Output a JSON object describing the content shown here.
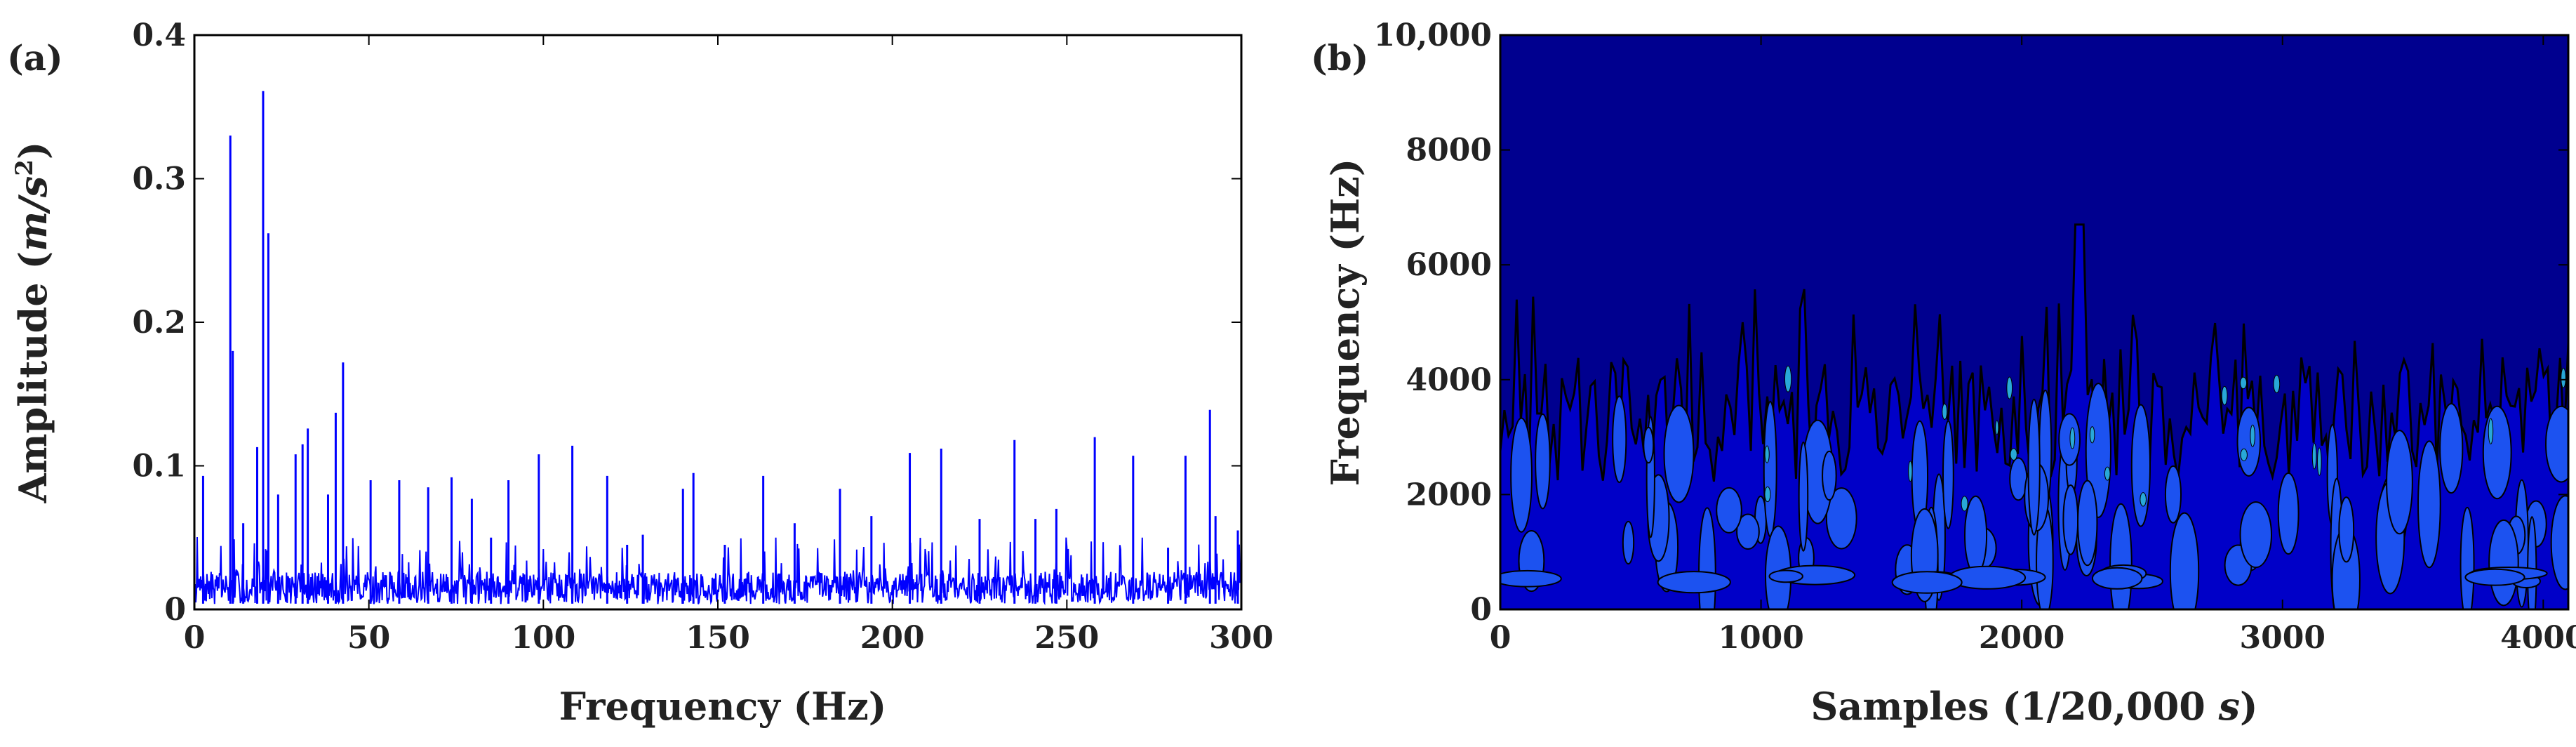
{
  "chart_data": [
    {
      "type": "line",
      "panel_label": "(a)",
      "xlabel": "Frequency (Hz)",
      "ylabel_parts": [
        "Amplitude (",
        "m/s",
        "2",
        ")"
      ],
      "xlim": [
        0,
        300
      ],
      "ylim": [
        0,
        0.4
      ],
      "xticks": [
        0,
        50,
        100,
        150,
        200,
        250,
        300
      ],
      "yticks": [
        0,
        0.1,
        0.2,
        0.3,
        0.4
      ],
      "ytick_labels": [
        "0",
        "0.1",
        "0.2",
        "0.3",
        "0.4"
      ],
      "grid": false,
      "color": "#0000ff",
      "noise_floor": 0.015,
      "peaks": {
        "x": [
          2.5,
          10.3,
          11.0,
          14,
          18,
          19.7,
          21.2,
          24,
          29,
          31,
          32.5,
          38.3,
          40.5,
          42.6,
          50.5,
          58.7,
          67,
          73.7,
          79.5,
          85,
          90,
          98.7,
          108.3,
          118.3,
          124,
          128.5,
          140,
          143,
          152,
          163,
          172,
          185,
          194,
          205,
          214,
          225,
          235,
          241,
          247,
          258,
          269,
          279,
          284,
          291,
          292.6,
          299
        ],
        "y": [
          0.093,
          0.33,
          0.18,
          0.06,
          0.113,
          0.361,
          0.262,
          0.08,
          0.108,
          0.115,
          0.126,
          0.08,
          0.137,
          0.172,
          0.09,
          0.09,
          0.085,
          0.092,
          0.077,
          0.05,
          0.09,
          0.108,
          0.114,
          0.093,
          0.045,
          0.052,
          0.084,
          0.095,
          0.045,
          0.093,
          0.06,
          0.084,
          0.065,
          0.109,
          0.112,
          0.063,
          0.118,
          0.063,
          0.07,
          0.12,
          0.107,
          0.043,
          0.107,
          0.139,
          0.065,
          0.055
        ]
      }
    },
    {
      "type": "heatmap",
      "panel_label": "(b)",
      "xlabel_parts": [
        "Samples (1/20,000 ",
        "s",
        ")"
      ],
      "ylabel": "Frequency (Hz)",
      "xlim": [
        0,
        4096
      ],
      "ylim": [
        0,
        10000
      ],
      "xticks": [
        0,
        1000,
        2000,
        3000,
        4000
      ],
      "yticks": [
        0,
        2000,
        4000,
        6000,
        8000,
        10000
      ],
      "ytick_labels": [
        "0",
        "2000",
        "4000",
        "6000",
        "8000",
        "10,000"
      ],
      "colors": {
        "background": "#00008f",
        "level1": "#0000c8",
        "level2": "#1c52f0",
        "level3": "#28a8d8",
        "contour": "#000000"
      },
      "max_activity_frequency_hz": 6700,
      "typical_activity_frequency_hz": 4000
    }
  ]
}
